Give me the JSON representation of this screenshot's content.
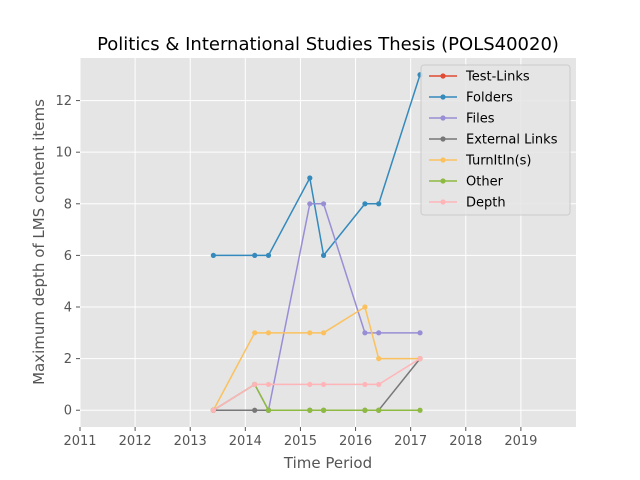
{
  "chart_data": {
    "type": "line",
    "title": "Politics & International Studies Thesis (POLS40020)",
    "xlabel": "Time Period",
    "ylabel": "Maximum depth of LMS content items",
    "xlim": [
      2011,
      2020
    ],
    "ylim": [
      -0.65,
      13.65
    ],
    "xticks": [
      "2011",
      "2012",
      "2013",
      "2014",
      "2015",
      "2016",
      "2017",
      "2018",
      "2019"
    ],
    "yticks": [
      "0",
      "2",
      "4",
      "6",
      "8",
      "10",
      "12"
    ],
    "grid": true,
    "legend_position": "top-right",
    "x": [
      2013.42,
      2014.17,
      2014.42,
      2015.17,
      2015.42,
      2016.17,
      2016.42,
      2017.17
    ],
    "series": [
      {
        "name": "Test-Links",
        "color": "#E24A33",
        "values": [
          null,
          null,
          null,
          null,
          null,
          null,
          null,
          null
        ]
      },
      {
        "name": "Folders",
        "color": "#348ABD",
        "values": [
          6,
          6,
          6,
          9,
          6,
          8,
          8,
          13
        ]
      },
      {
        "name": "Files",
        "color": "#988ED5",
        "values": [
          0,
          1,
          0,
          8,
          8,
          3,
          3,
          3
        ]
      },
      {
        "name": "External Links",
        "color": "#777777",
        "values": [
          0,
          0,
          0,
          0,
          0,
          0,
          0,
          2
        ]
      },
      {
        "name": "TurnItIn(s)",
        "color": "#FBC15E",
        "values": [
          0,
          3,
          3,
          3,
          3,
          4,
          2,
          2
        ]
      },
      {
        "name": "Other",
        "color": "#8EBA42",
        "values": [
          0,
          1,
          0,
          0,
          0,
          0,
          0,
          0
        ]
      },
      {
        "name": "Depth",
        "color": "#FFB5B8",
        "values": [
          0,
          1,
          1,
          1,
          1,
          1,
          1,
          2
        ]
      }
    ]
  }
}
